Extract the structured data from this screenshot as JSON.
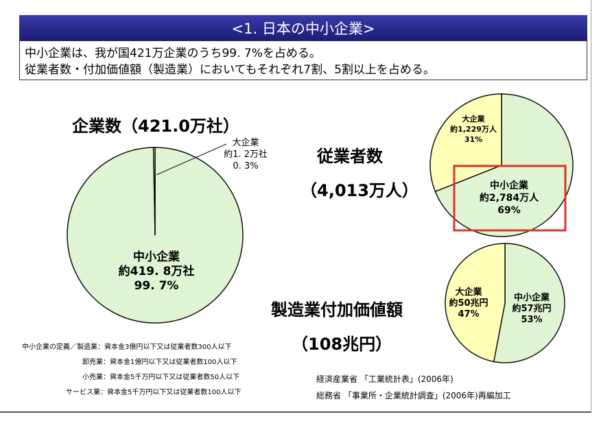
{
  "header": {
    "title": "<1. 日本の中小企業>"
  },
  "summary": {
    "line1": "中小企業は、我が国421万企業のうち99. 7%を占める。",
    "line2": "従業者数・付加価値額（製造業）においてもそれぞれ7割、5割以上を占める。"
  },
  "colors": {
    "sme": "#dff5d3",
    "large": "#ffffb8",
    "banner": "#2a2a90",
    "highlight": "#e0332c"
  },
  "chart_data": [
    {
      "type": "pie",
      "title": "企業数（421.0万社）",
      "slices": [
        {
          "label_name": "大企業",
          "label_value": "約1. 2万社",
          "label_pct": "0. 3%",
          "value": 0.3
        },
        {
          "label_name": "中小企業",
          "label_value": "約419. 8万社",
          "label_pct": "99. 7%",
          "value": 99.7
        }
      ]
    },
    {
      "type": "pie",
      "title": "従業者数",
      "subtitle": "（4,013万人）",
      "slices": [
        {
          "label_name": "大企業",
          "label_value": "約1,229万人",
          "label_pct": "31%",
          "value": 31
        },
        {
          "label_name": "中小企業",
          "label_value": "約2,784万人",
          "label_pct": "69%",
          "value": 69
        }
      ]
    },
    {
      "type": "pie",
      "title": "製造業付加価値額",
      "subtitle": "（108兆円）",
      "slices": [
        {
          "label_name": "大企業",
          "label_value": "約50兆円",
          "label_pct": "47%",
          "value": 47
        },
        {
          "label_name": "中小企業",
          "label_value": "約57兆円",
          "label_pct": "53%",
          "value": 53
        }
      ]
    }
  ],
  "notes": {
    "definition_label": "中小企業の定義／",
    "rows": [
      "製造業：資本金3億円以下又は従業者数300人以下",
      "卸売業：資本金1億円以下又は従業者数100人以下",
      "小売業：資本金5千万円以下又は従業者数50人以下",
      "サービス業：資本金5千万円以下又は従業者数100人以下"
    ]
  },
  "sources": {
    "line1": "経済産業省 「工業統計表」(2006年)",
    "line2": "総務省 「事業所・企業統計調査」(2006年)再編加工"
  }
}
